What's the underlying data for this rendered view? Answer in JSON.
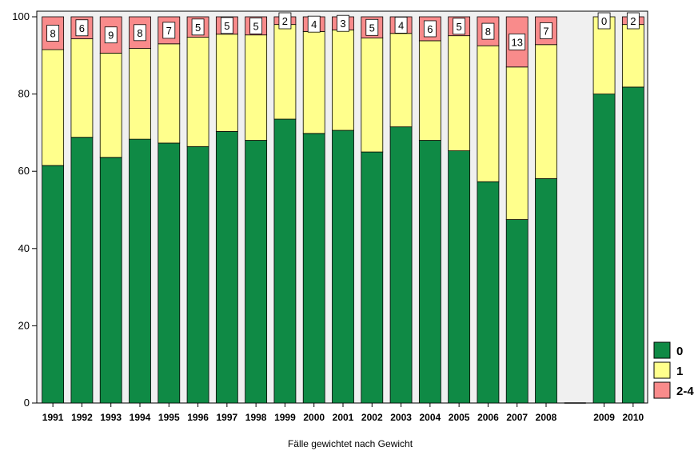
{
  "chart_data": {
    "type": "bar",
    "stacked": true,
    "percent_scale": true,
    "categories": [
      "1991",
      "1992",
      "1993",
      "1994",
      "1995",
      "1996",
      "1997",
      "1998",
      "1999",
      "2000",
      "2001",
      "2002",
      "2003",
      "2004",
      "2005",
      "2006",
      "2007",
      "2008",
      "",
      "2009",
      "2010"
    ],
    "series": [
      {
        "name": "0",
        "color": "#0f8a45",
        "values": [
          61.5,
          68.8,
          63.6,
          68.3,
          67.3,
          66.4,
          70.3,
          68.0,
          73.5,
          69.8,
          70.6,
          65.0,
          71.5,
          68.0,
          65.3,
          57.3,
          47.5,
          58.1,
          0,
          80.0,
          81.8
        ]
      },
      {
        "name": "1",
        "color": "#ffff8c",
        "values": [
          30.0,
          25.5,
          27.0,
          23.5,
          25.7,
          28.3,
          25.2,
          27.3,
          24.5,
          26.4,
          26.0,
          29.5,
          24.2,
          25.8,
          29.8,
          35.2,
          39.5,
          34.7,
          0,
          20.0,
          16.2
        ]
      },
      {
        "name": "2-4",
        "color": "#f98b8b",
        "values": [
          8.5,
          5.7,
          9.4,
          8.2,
          7.0,
          5.3,
          4.5,
          4.7,
          2.0,
          3.8,
          3.4,
          5.5,
          4.3,
          6.2,
          4.9,
          7.5,
          13.0,
          7.2,
          0,
          0,
          2.0
        ]
      }
    ],
    "data_labels": [
      "8",
      "6",
      "9",
      "8",
      "7",
      "5",
      "5",
      "5",
      "2",
      "4",
      "3",
      "5",
      "4",
      "6",
      "5",
      "8",
      "13",
      "7",
      "",
      "0",
      "2"
    ],
    "ylim": [
      0,
      100
    ],
    "yticks": [
      "0",
      "20",
      "40",
      "60",
      "80",
      "100"
    ],
    "title": "",
    "xlabel": "",
    "ylabel": "",
    "legend": {
      "placement": "bottom-right",
      "entries": [
        "0",
        "1",
        "2-4"
      ]
    },
    "grid": false,
    "gap_category_index": 18,
    "footnote": "Fälle gewichtet nach Gewicht"
  }
}
